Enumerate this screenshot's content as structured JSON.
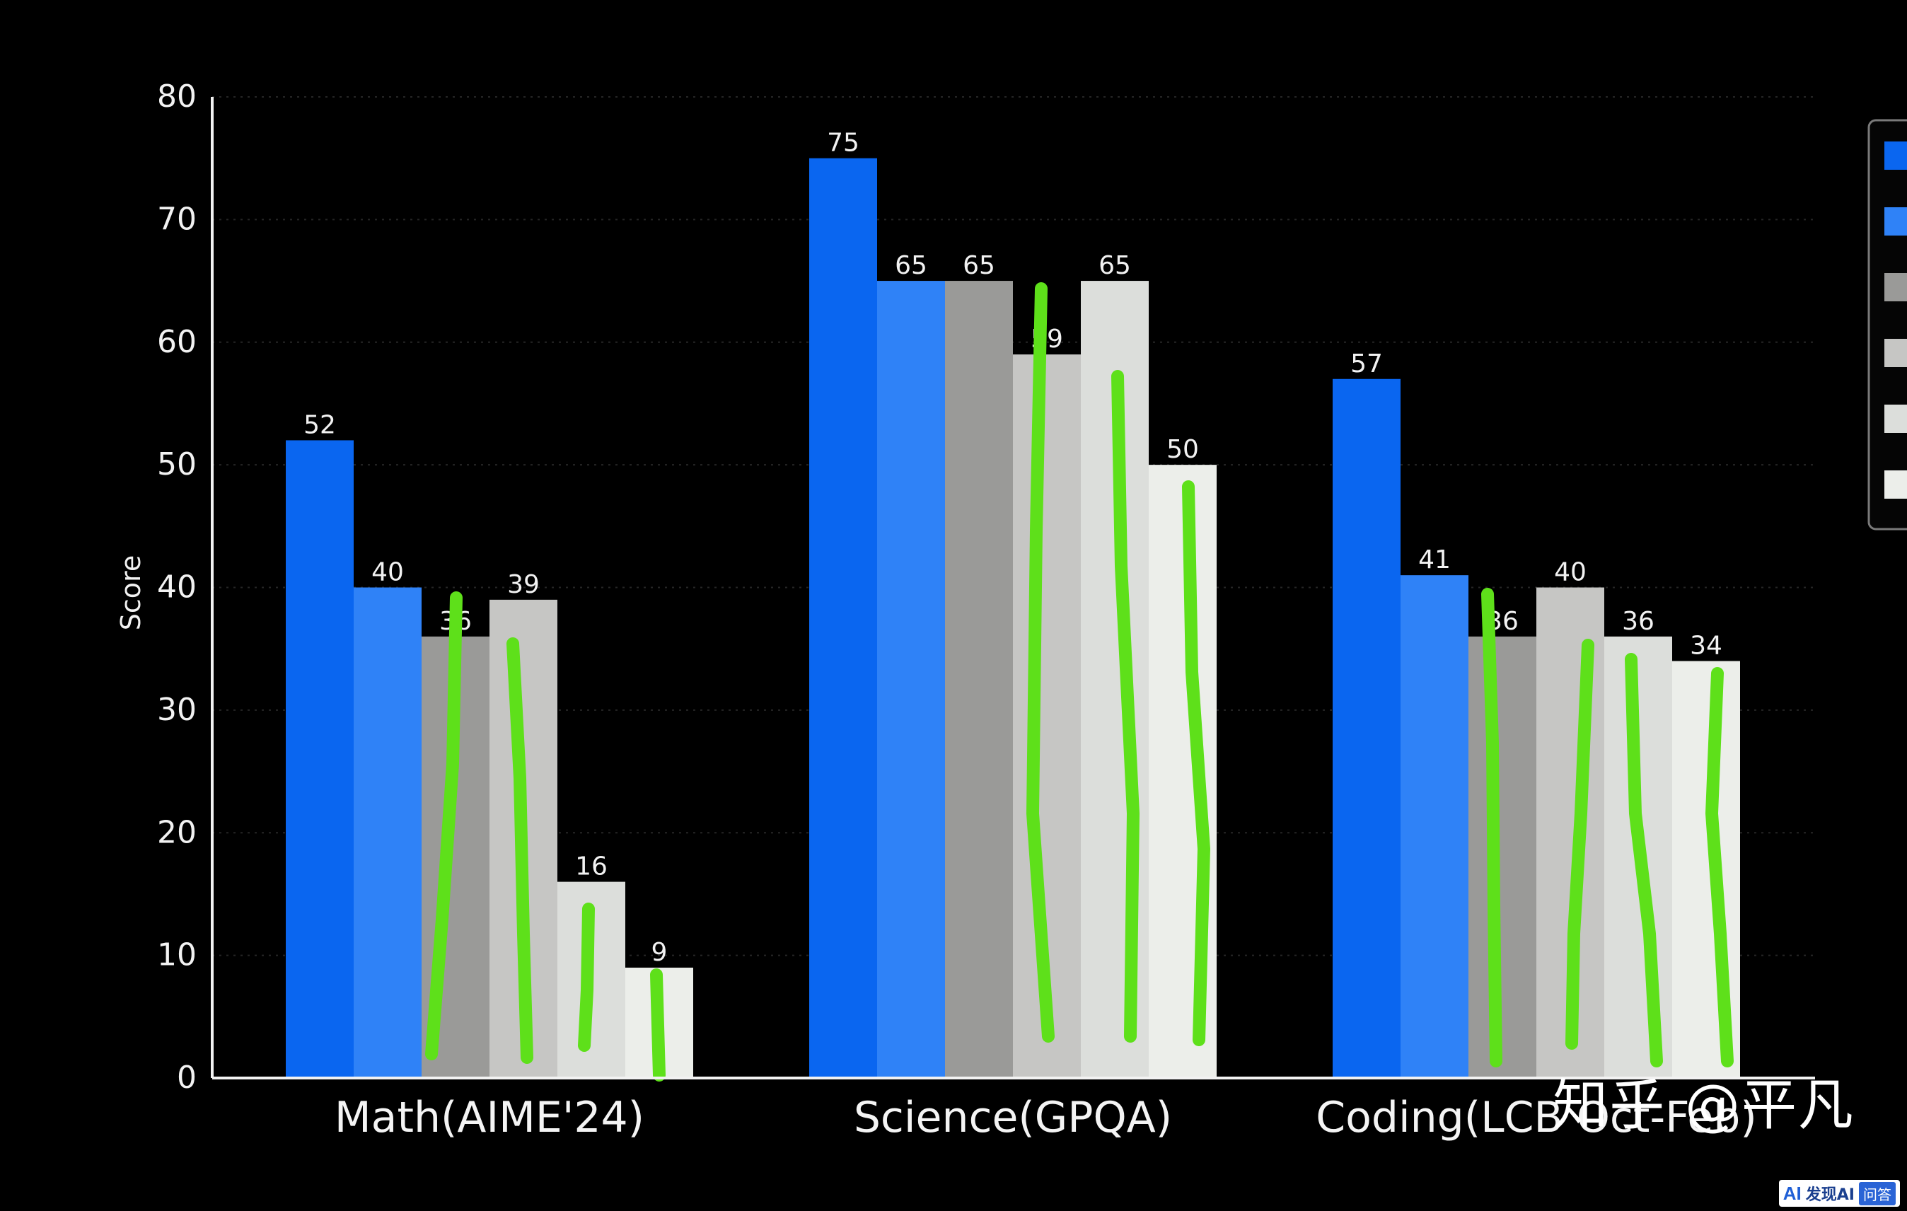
{
  "chart_data": {
    "type": "bar",
    "ylabel": "Score",
    "ylim": [
      0,
      80
    ],
    "yticks": [
      0,
      10,
      20,
      30,
      40,
      50,
      60,
      70,
      80
    ],
    "categories": [
      "Math(AIME'24)",
      "Science(GPQA)",
      "Coding(LCB Oct-Feb)"
    ],
    "legend_position": "right",
    "series": [
      {
        "values": [
          52,
          75,
          57
        ],
        "color": "#0a66f0"
      },
      {
        "values": [
          40,
          65,
          41
        ],
        "color": "#2f82f7"
      },
      {
        "values": [
          36,
          65,
          36
        ],
        "color": "#9a9a98"
      },
      {
        "values": [
          39,
          59,
          40
        ],
        "color": "#c6c6c4"
      },
      {
        "values": [
          16,
          65,
          36
        ],
        "color": "#dcdedb"
      },
      {
        "values": [
          9,
          50,
          34
        ],
        "color": "#eceeea"
      }
    ],
    "annotation_color": "#5ee01a"
  },
  "watermark": {
    "zh": "知乎 @平凡",
    "badge_ai": "AI",
    "badge_text": "发现AI",
    "badge_tag": "问答"
  }
}
